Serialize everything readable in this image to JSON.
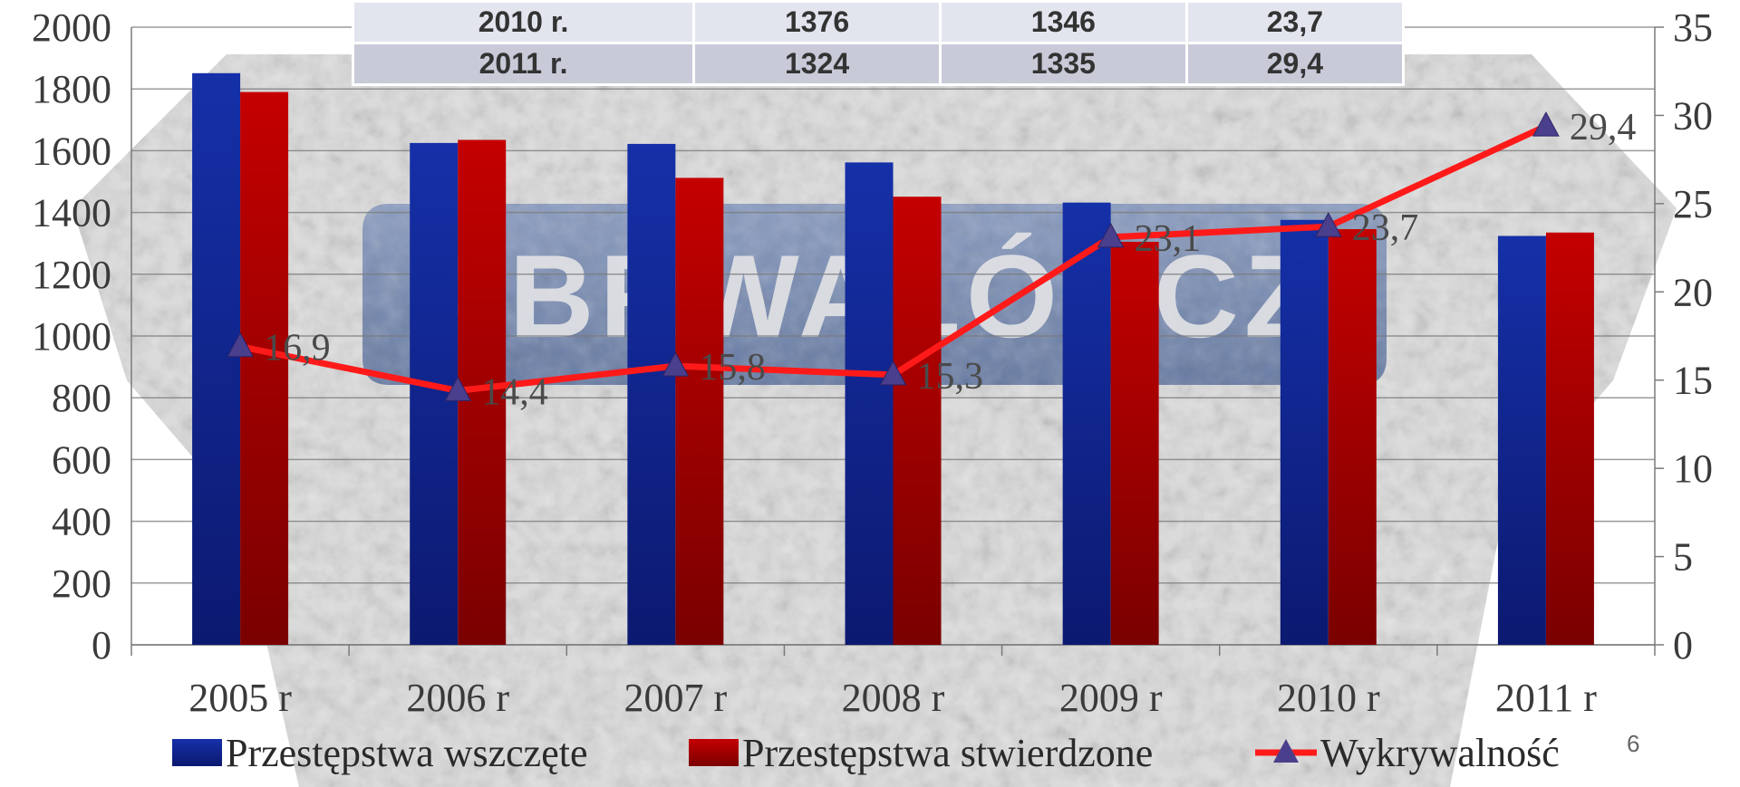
{
  "colors": {
    "series_started": "#14239a",
    "series_confirmed": "#b00000",
    "detection_line": "#ff1a1a",
    "marker": "#4a3f8c"
  },
  "background": {
    "watermark_text": "ABRWAŁÓRCZ"
  },
  "summary_table": {
    "rows": [
      [
        "2010 r.",
        "1376",
        "1346",
        "23,7"
      ],
      [
        "2011 r.",
        "1324",
        "1335",
        "29,4"
      ]
    ]
  },
  "page_number": "6",
  "chart_data": {
    "type": "bar",
    "categories": [
      "2005 r",
      "2006 r",
      "2007 r",
      "2008 r",
      "2009 r",
      "2010 r",
      "2011 r"
    ],
    "series": [
      {
        "name": "Przestępstwa wszczęte",
        "type": "bar",
        "axis": "left",
        "values": [
          1851,
          1625,
          1622,
          1562,
          1432,
          1376,
          1324
        ]
      },
      {
        "name": "Przestępstwa stwierdzone",
        "type": "bar",
        "axis": "left",
        "values": [
          1790,
          1635,
          1512,
          1451,
          1305,
          1346,
          1335
        ]
      },
      {
        "name": "Wykrywalność",
        "type": "line",
        "axis": "right",
        "values": [
          16.9,
          14.4,
          15.8,
          15.3,
          23.1,
          23.7,
          29.4
        ],
        "labels": [
          "16,9",
          "14,4",
          "15,8",
          "15,3",
          "23,1",
          "23,7",
          "29,4"
        ]
      }
    ],
    "y_left": {
      "min": 0,
      "max": 2000,
      "ticks": [
        "0",
        "200",
        "400",
        "600",
        "800",
        "1000",
        "1200",
        "1400",
        "1600",
        "1800",
        "2000"
      ]
    },
    "y_right": {
      "min": 0,
      "max": 35,
      "ticks": [
        "0",
        "5",
        "10",
        "15",
        "20",
        "25",
        "30",
        "35"
      ]
    },
    "grid": true,
    "legend_position": "bottom"
  }
}
